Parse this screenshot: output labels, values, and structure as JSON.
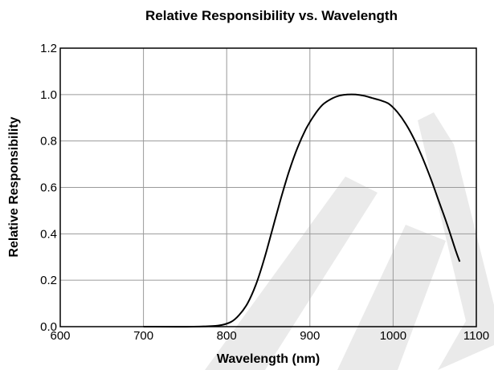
{
  "chart_data": {
    "type": "line",
    "title": "Relative Responsibility vs. Wavelength",
    "xlabel": "Wavelength (nm)",
    "ylabel": "Relative Responsibility",
    "xlim": [
      600,
      1100
    ],
    "ylim": [
      0,
      1.2
    ],
    "x_ticks": [
      "600",
      "700",
      "800",
      "900",
      "1000",
      "1100"
    ],
    "y_ticks": [
      "0.0",
      "0.2",
      "0.4",
      "0.6",
      "0.8",
      "1.0",
      "1.2"
    ],
    "grid": true,
    "legend": "none",
    "series": [
      {
        "x": [
          700,
          760,
          790,
          805,
          815,
          825,
          835,
          845,
          855,
          865,
          875,
          885,
          895,
          905,
          915,
          925,
          935,
          945,
          955,
          965,
          975,
          985,
          995,
          1005,
          1015,
          1025,
          1035,
          1045,
          1055,
          1065,
          1075,
          1080
        ],
        "y": [
          0.0,
          0.0,
          0.005,
          0.02,
          0.05,
          0.1,
          0.18,
          0.29,
          0.42,
          0.55,
          0.67,
          0.77,
          0.85,
          0.91,
          0.955,
          0.98,
          0.995,
          1.0,
          1.0,
          0.995,
          0.985,
          0.975,
          0.96,
          0.925,
          0.875,
          0.81,
          0.73,
          0.64,
          0.54,
          0.44,
          0.33,
          0.28
        ]
      }
    ],
    "colors": {
      "line": "#000000",
      "grid": "#9a9a9a",
      "watermark": "#d9d9d9"
    }
  }
}
